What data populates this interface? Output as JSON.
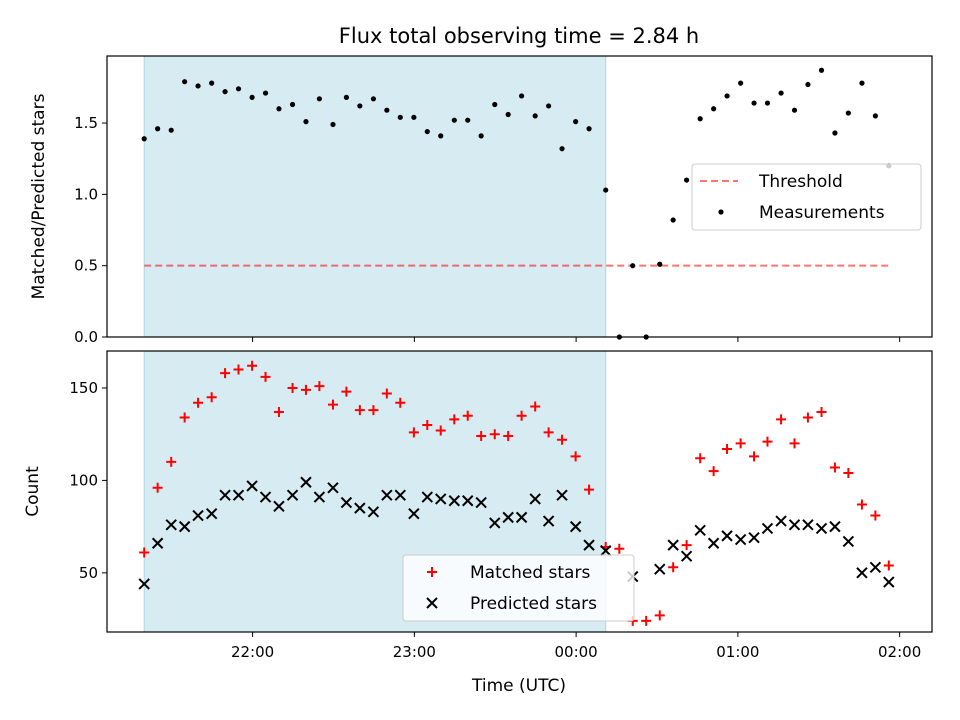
{
  "figure": {
    "title": "Flux total observing time = 2.84 h",
    "xlabel": "Time (UTC)"
  },
  "colors": {
    "shade": "#add8e6",
    "threshold": "#ff0000",
    "matched": "#ff0000",
    "predicted": "#000000",
    "measurements": "#000000"
  },
  "chart_data": [
    {
      "type": "scatter",
      "panel": "top",
      "ylabel": "Matched/Predicted stars",
      "xaxis": "time (decimal hours UTC, values past 24 are after midnight)",
      "xlim": [
        21.1,
        26.2
      ],
      "ylim": [
        0.0,
        1.97
      ],
      "xticks": [
        {
          "value": 22,
          "label": ""
        },
        {
          "value": 23,
          "label": ""
        },
        {
          "value": 24,
          "label": ""
        },
        {
          "value": 25,
          "label": ""
        },
        {
          "value": 26,
          "label": ""
        }
      ],
      "yticks": [
        {
          "value": 0.0,
          "label": "0.0"
        },
        {
          "value": 0.5,
          "label": "0.5"
        },
        {
          "value": 1.0,
          "label": "1.0"
        },
        {
          "value": 1.5,
          "label": "1.5"
        }
      ],
      "shaded_region": {
        "x": [
          21.33,
          24.183
        ]
      },
      "legend": {
        "position": "center-right",
        "entries": [
          {
            "name": "Threshold",
            "series": "threshold"
          },
          {
            "name": "Measurements",
            "series": "measurements"
          }
        ]
      },
      "series": [
        {
          "id": "threshold",
          "name": "Threshold",
          "style": "dashed-line",
          "x": [
            21.33,
            25.93
          ],
          "y": [
            0.5,
            0.5
          ]
        },
        {
          "id": "measurements",
          "name": "Measurements",
          "style": "dot",
          "x": [
            21.33,
            21.413,
            21.497,
            21.58,
            21.663,
            21.747,
            21.83,
            21.913,
            21.997,
            22.08,
            22.163,
            22.247,
            22.33,
            22.413,
            22.497,
            22.58,
            22.663,
            22.747,
            22.83,
            22.913,
            22.997,
            23.08,
            23.163,
            23.247,
            23.33,
            23.413,
            23.497,
            23.58,
            23.663,
            23.747,
            23.83,
            23.913,
            23.997,
            24.08,
            24.183,
            24.267,
            24.35,
            24.433,
            24.517,
            24.6,
            24.683,
            24.767,
            24.85,
            24.933,
            25.017,
            25.1,
            25.183,
            25.267,
            25.35,
            25.433,
            25.517,
            25.6,
            25.683,
            25.767,
            25.85,
            25.933
          ],
          "y": [
            1.39,
            1.46,
            1.45,
            1.79,
            1.76,
            1.78,
            1.72,
            1.74,
            1.68,
            1.71,
            1.6,
            1.63,
            1.51,
            1.67,
            1.49,
            1.68,
            1.62,
            1.67,
            1.59,
            1.54,
            1.54,
            1.44,
            1.41,
            1.52,
            1.52,
            1.41,
            1.63,
            1.56,
            1.69,
            1.55,
            1.62,
            1.32,
            1.51,
            1.46,
            1.03,
            0.0,
            0.5,
            0.0,
            0.51,
            0.82,
            1.1,
            1.53,
            1.6,
            1.69,
            1.78,
            1.64,
            1.64,
            1.71,
            1.59,
            1.77,
            1.87,
            1.43,
            1.57,
            1.78,
            1.55,
            1.2
          ]
        }
      ]
    },
    {
      "type": "scatter",
      "panel": "bottom",
      "ylabel": "Count",
      "xaxis": "time (decimal hours UTC, values past 24 are after midnight)",
      "xlim": [
        21.1,
        26.2
      ],
      "ylim": [
        18,
        170
      ],
      "xticks": [
        {
          "value": 22,
          "label": "22:00"
        },
        {
          "value": 23,
          "label": "23:00"
        },
        {
          "value": 24,
          "label": "00:00"
        },
        {
          "value": 25,
          "label": "01:00"
        },
        {
          "value": 26,
          "label": "02:00"
        }
      ],
      "yticks": [
        {
          "value": 50,
          "label": "50"
        },
        {
          "value": 100,
          "label": "100"
        },
        {
          "value": 150,
          "label": "150"
        }
      ],
      "shaded_region": {
        "x": [
          21.33,
          24.183
        ]
      },
      "legend": {
        "position": "lower-center",
        "entries": [
          {
            "name": "Matched stars",
            "series": "matched"
          },
          {
            "name": "Predicted stars",
            "series": "predicted"
          }
        ]
      },
      "series": [
        {
          "id": "matched",
          "name": "Matched stars",
          "style": "plus",
          "x": [
            21.33,
            21.413,
            21.497,
            21.58,
            21.663,
            21.747,
            21.83,
            21.913,
            21.997,
            22.08,
            22.163,
            22.247,
            22.33,
            22.413,
            22.497,
            22.58,
            22.663,
            22.747,
            22.83,
            22.913,
            22.997,
            23.08,
            23.163,
            23.247,
            23.33,
            23.413,
            23.497,
            23.58,
            23.663,
            23.747,
            23.83,
            23.913,
            23.997,
            24.08,
            24.183,
            24.267,
            24.35,
            24.433,
            24.517,
            24.6,
            24.683,
            24.767,
            24.85,
            24.933,
            25.017,
            25.1,
            25.183,
            25.267,
            25.35,
            25.433,
            25.517,
            25.6,
            25.683,
            25.767,
            25.85,
            25.933
          ],
          "y": [
            61,
            96,
            110,
            134,
            142,
            145,
            158,
            160,
            162,
            156,
            137,
            150,
            149,
            151,
            141,
            148,
            138,
            138,
            147,
            142,
            126,
            130,
            127,
            133,
            135,
            124,
            125,
            124,
            135,
            140,
            126,
            122,
            113,
            95,
            64,
            63,
            24,
            24,
            27,
            53,
            65,
            112,
            105,
            117,
            120,
            113,
            121,
            133,
            120,
            134,
            137,
            107,
            104,
            87,
            81,
            54
          ]
        },
        {
          "id": "predicted",
          "name": "Predicted stars",
          "style": "x",
          "x": [
            21.33,
            21.413,
            21.497,
            21.58,
            21.663,
            21.747,
            21.83,
            21.913,
            21.997,
            22.08,
            22.163,
            22.247,
            22.33,
            22.413,
            22.497,
            22.58,
            22.663,
            22.747,
            22.83,
            22.913,
            22.997,
            23.08,
            23.163,
            23.247,
            23.33,
            23.413,
            23.497,
            23.58,
            23.663,
            23.747,
            23.83,
            23.913,
            23.997,
            24.08,
            24.183,
            24.35,
            24.517,
            24.6,
            24.683,
            24.767,
            24.85,
            24.933,
            25.017,
            25.1,
            25.183,
            25.267,
            25.35,
            25.433,
            25.517,
            25.6,
            25.683,
            25.767,
            25.85,
            25.933
          ],
          "y": [
            44,
            66,
            76,
            75,
            81,
            82,
            92,
            92,
            97,
            91,
            86,
            92,
            99,
            91,
            96,
            88,
            85,
            83,
            92,
            92,
            82,
            91,
            90,
            89,
            89,
            88,
            77,
            80,
            80,
            90,
            78,
            92,
            75,
            65,
            62,
            48,
            52,
            65,
            59,
            73,
            66,
            70,
            68,
            69,
            74,
            78,
            76,
            76,
            74,
            75,
            67,
            50,
            53,
            45
          ]
        }
      ]
    }
  ]
}
